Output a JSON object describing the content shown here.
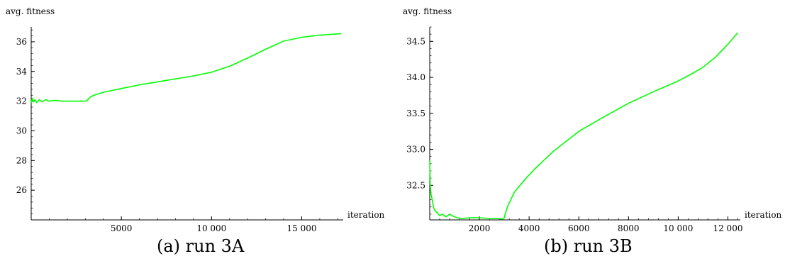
{
  "chart_data": [
    {
      "type": "line",
      "caption": "(a) run 3A",
      "xlabel": "iteration",
      "ylabel": "avg. fitness",
      "xlim": [
        0,
        17300
      ],
      "ylim": [
        24,
        37
      ],
      "xticks": [
        5000,
        10000,
        15000
      ],
      "xtick_labels": [
        "5000",
        "10 000",
        "15 000"
      ],
      "yticks": [
        26,
        28,
        30,
        32,
        34,
        36
      ],
      "grid": false,
      "series": [
        {
          "color": "#00ff00",
          "x": [
            0,
            60,
            120,
            200,
            300,
            450,
            600,
            800,
            1000,
            1300,
            1700,
            2200,
            2700,
            3000,
            3100,
            3300,
            3600,
            4000,
            5000,
            6000,
            7000,
            8000,
            9000,
            10000,
            11000,
            12000,
            13000,
            14000,
            15000,
            16000,
            17200
          ],
          "y": [
            31.9,
            32.2,
            31.95,
            32.1,
            31.9,
            32.1,
            31.95,
            32.1,
            32.0,
            32.05,
            32.0,
            32.0,
            32.0,
            32.0,
            32.05,
            32.3,
            32.45,
            32.6,
            32.85,
            33.1,
            33.3,
            33.5,
            33.7,
            33.95,
            34.35,
            34.9,
            35.5,
            36.05,
            36.3,
            36.45,
            36.55
          ]
        }
      ]
    },
    {
      "type": "line",
      "caption": "(b) run 3B",
      "xlabel": "iteration",
      "ylabel": "avg. fitness",
      "xlim": [
        0,
        12500
      ],
      "ylim": [
        32.02,
        34.7
      ],
      "xticks": [
        2000,
        4000,
        6000,
        8000,
        10000,
        12000
      ],
      "xtick_labels": [
        "2000",
        "4000",
        "6000",
        "8000",
        "10 000",
        "12 000"
      ],
      "yticks": [
        32.5,
        33.0,
        33.5,
        34.0,
        34.5
      ],
      "ytick_labels": [
        "32.5",
        "33.0",
        "33.5",
        "34.0",
        "34.5"
      ],
      "grid": false,
      "series": [
        {
          "color": "#00ff00",
          "x": [
            0,
            20,
            50,
            100,
            150,
            200,
            300,
            400,
            500,
            650,
            800,
            950,
            1100,
            1300,
            1600,
            2000,
            2400,
            2700,
            2950,
            3000,
            3050,
            3150,
            3400,
            3800,
            4200,
            5000,
            6000,
            7000,
            8000,
            9000,
            10000,
            10500,
            11000,
            11500,
            12000,
            12400
          ],
          "y": [
            32.85,
            32.5,
            32.38,
            32.3,
            32.2,
            32.15,
            32.12,
            32.08,
            32.1,
            32.06,
            32.1,
            32.07,
            32.05,
            32.04,
            32.05,
            32.05,
            32.04,
            32.04,
            32.03,
            32.05,
            32.12,
            32.22,
            32.4,
            32.57,
            32.72,
            32.98,
            33.25,
            33.45,
            33.64,
            33.8,
            33.95,
            34.04,
            34.14,
            34.28,
            34.46,
            34.62
          ]
        }
      ]
    }
  ]
}
